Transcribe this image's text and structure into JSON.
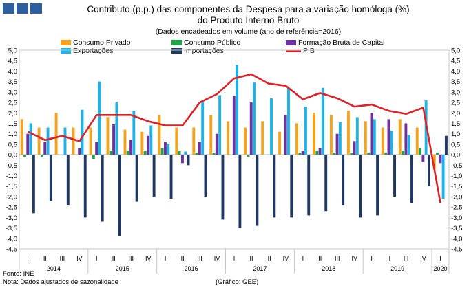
{
  "chart_data": {
    "type": "bar",
    "title": "Contributo (p.p.) das componentes da Despesa para a variação homóloga (%)",
    "title_line2": "do Produto Interno Bruto",
    "subtitle": "(Dados encadeados em volume (ano de referência=2016)",
    "ylim": [
      -4.5,
      5.0
    ],
    "ytick_step": 0.5,
    "yticks": [
      "5,0",
      "4,5",
      "4,0",
      "3,5",
      "3,0",
      "2,5",
      "2,0",
      "1,5",
      "1,0",
      "0,5",
      "0,0",
      "-0,5",
      "-1,0",
      "-1,5",
      "-2,0",
      "-2,5",
      "-3,0",
      "-3,5",
      "-4,0",
      "-4,5"
    ],
    "quarter_labels": [
      "I",
      "II",
      "III",
      "IV",
      "I",
      "II",
      "III",
      "IV",
      "I",
      "II",
      "III",
      "IV",
      "I",
      "II",
      "III",
      "IV",
      "I",
      "II",
      "III",
      "IV",
      "I",
      "II",
      "III",
      "IV",
      "I"
    ],
    "year_groups": [
      {
        "label": "2014",
        "quarters": 4
      },
      {
        "label": "2015",
        "quarters": 4
      },
      {
        "label": "2016",
        "quarters": 4
      },
      {
        "label": "2017",
        "quarters": 4
      },
      {
        "label": "2018",
        "quarters": 4
      },
      {
        "label": "2019",
        "quarters": 4
      },
      {
        "label": "2020",
        "quarters": 1
      }
    ],
    "series": [
      {
        "name": "Consumo Privado",
        "type": "bar",
        "color": "#f7a21b",
        "values": [
          1.7,
          1.3,
          2.0,
          1.3,
          1.3,
          1.8,
          1.2,
          1.1,
          1.9,
          1.3,
          1.3,
          1.9,
          1.6,
          1.3,
          1.6,
          1.1,
          1.5,
          2.0,
          1.9,
          2.1,
          1.6,
          1.3,
          1.7,
          1.3,
          -0.7
        ]
      },
      {
        "name": "Consumo Público",
        "type": "bar",
        "color": "#1aa648",
        "values": [
          -0.1,
          -0.1,
          0.0,
          0.0,
          -0.2,
          0.2,
          0.2,
          0.2,
          0.3,
          0.2,
          0.1,
          0.1,
          0.0,
          -0.1,
          0.0,
          0.0,
          0.1,
          0.2,
          0.1,
          0.1,
          0.1,
          0.1,
          0.2,
          0.3,
          0.1
        ]
      },
      {
        "name": "Formação Bruta de Capital",
        "type": "bar",
        "color": "#7030a0",
        "values": [
          1.0,
          0.6,
          0.0,
          0.3,
          0.6,
          1.45,
          0.7,
          0.9,
          0.6,
          -0.4,
          0.6,
          1.0,
          2.8,
          2.5,
          0.0,
          1.9,
          0.2,
          0.3,
          1.0,
          0.65,
          2.0,
          1.7,
          1.5,
          -0.35,
          -0.4
        ]
      },
      {
        "name": "Exportações",
        "type": "bar",
        "color": "#1cb4e8",
        "values": [
          1.5,
          1.3,
          1.3,
          2.15,
          3.5,
          2.5,
          2.1,
          1.4,
          0.5,
          0.15,
          2.5,
          2.85,
          4.3,
          3.45,
          2.7,
          3.2,
          2.3,
          3.2,
          1.55,
          1.8,
          1.7,
          1.15,
          0.95,
          2.6,
          -2.1
        ]
      },
      {
        "name": "Importações",
        "type": "bar",
        "color": "#203864",
        "values": [
          -2.8,
          -2.2,
          -2.4,
          -3.0,
          -3.2,
          -3.9,
          -2.25,
          -2.0,
          -2.1,
          -0.5,
          -2.0,
          -3.1,
          -3.5,
          -3.4,
          -3.0,
          -3.0,
          -2.9,
          -2.7,
          -2.4,
          -3.0,
          -2.9,
          -2.0,
          -2.3,
          -1.5,
          0.9
        ]
      },
      {
        "name": "PIB",
        "type": "line",
        "color": "#e31f26",
        "values": [
          1.1,
          0.7,
          0.9,
          0.65,
          1.9,
          1.9,
          1.9,
          1.6,
          1.4,
          1.4,
          2.5,
          2.9,
          3.65,
          3.85,
          3.4,
          3.3,
          2.65,
          2.95,
          2.7,
          2.3,
          2.4,
          2.1,
          1.95,
          2.25,
          -2.3
        ]
      }
    ]
  },
  "footer": {
    "source": "Fonte: INE",
    "note": "Nota: Dados ajustados de sazonalidade",
    "credit": "(Gráfico: GEE)"
  }
}
